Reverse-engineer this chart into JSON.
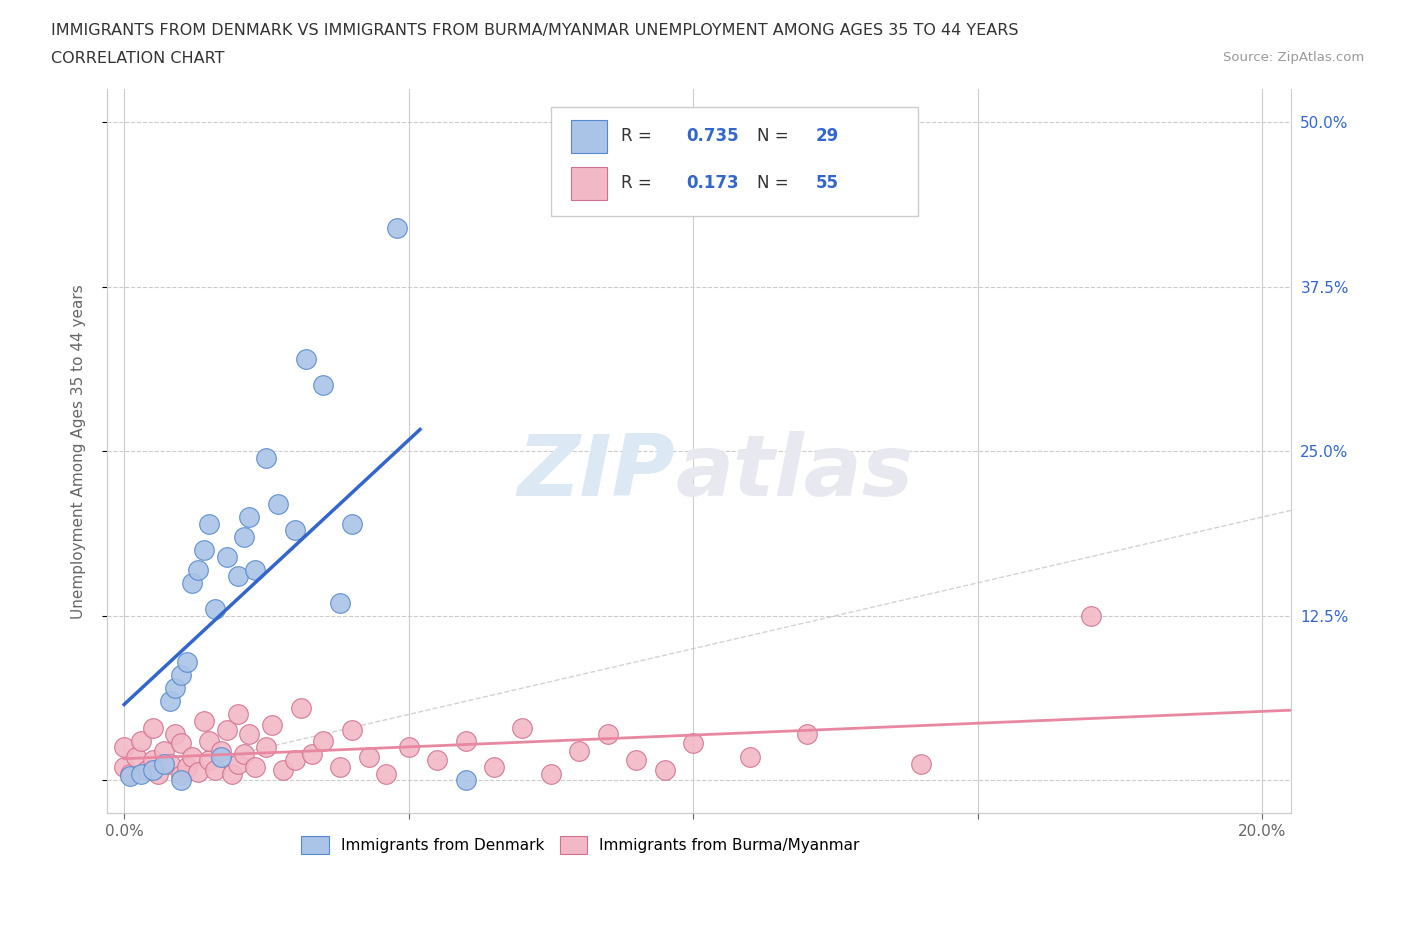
{
  "title_line1": "IMMIGRANTS FROM DENMARK VS IMMIGRANTS FROM BURMA/MYANMAR UNEMPLOYMENT AMONG AGES 35 TO 44 YEARS",
  "title_line2": "CORRELATION CHART",
  "source_text": "Source: ZipAtlas.com",
  "ylabel": "Unemployment Among Ages 35 to 44 years",
  "xlim": [
    -0.003,
    0.205
  ],
  "ylim": [
    -0.025,
    0.525
  ],
  "denmark_color": "#aac4e8",
  "denmark_edge_color": "#5588cc",
  "myanmar_color": "#f2b8c6",
  "myanmar_edge_color": "#d07090",
  "denmark_R": 0.735,
  "denmark_N": 29,
  "myanmar_R": 0.173,
  "myanmar_N": 55,
  "denmark_line_color": "#3366cc",
  "myanmar_line_color": "#e888a0",
  "right_tick_color": "#3366cc",
  "diagonal_color": "#c8c8c8",
  "legend_label_denmark": "Immigrants from Denmark",
  "legend_label_myanmar": "Immigrants from Burma/Myanmar",
  "dk_x": [
    0.001,
    0.003,
    0.005,
    0.007,
    0.008,
    0.009,
    0.01,
    0.01,
    0.011,
    0.012,
    0.013,
    0.014,
    0.015,
    0.016,
    0.017,
    0.018,
    0.02,
    0.021,
    0.022,
    0.023,
    0.025,
    0.027,
    0.03,
    0.032,
    0.035,
    0.038,
    0.04,
    0.048,
    0.06
  ],
  "dk_y": [
    0.003,
    0.005,
    0.008,
    0.012,
    0.06,
    0.07,
    0.08,
    0.0,
    0.09,
    0.15,
    0.16,
    0.175,
    0.195,
    0.13,
    0.018,
    0.17,
    0.155,
    0.185,
    0.2,
    0.16,
    0.245,
    0.21,
    0.19,
    0.32,
    0.3,
    0.135,
    0.195,
    0.42,
    0.0
  ],
  "mm_x": [
    0.0,
    0.0,
    0.001,
    0.002,
    0.003,
    0.004,
    0.005,
    0.005,
    0.006,
    0.007,
    0.008,
    0.009,
    0.01,
    0.01,
    0.011,
    0.012,
    0.013,
    0.014,
    0.015,
    0.015,
    0.016,
    0.017,
    0.018,
    0.019,
    0.02,
    0.02,
    0.021,
    0.022,
    0.023,
    0.025,
    0.026,
    0.028,
    0.03,
    0.031,
    0.033,
    0.035,
    0.038,
    0.04,
    0.043,
    0.046,
    0.05,
    0.055,
    0.06,
    0.065,
    0.07,
    0.075,
    0.08,
    0.085,
    0.09,
    0.095,
    0.1,
    0.11,
    0.12,
    0.14,
    0.17
  ],
  "mm_y": [
    0.01,
    0.025,
    0.005,
    0.018,
    0.03,
    0.008,
    0.015,
    0.04,
    0.005,
    0.022,
    0.012,
    0.035,
    0.004,
    0.028,
    0.01,
    0.018,
    0.006,
    0.045,
    0.015,
    0.03,
    0.008,
    0.022,
    0.038,
    0.005,
    0.012,
    0.05,
    0.02,
    0.035,
    0.01,
    0.025,
    0.042,
    0.008,
    0.015,
    0.055,
    0.02,
    0.03,
    0.01,
    0.038,
    0.018,
    0.005,
    0.025,
    0.015,
    0.03,
    0.01,
    0.04,
    0.005,
    0.022,
    0.035,
    0.015,
    0.008,
    0.028,
    0.018,
    0.035,
    0.012,
    0.125
  ]
}
